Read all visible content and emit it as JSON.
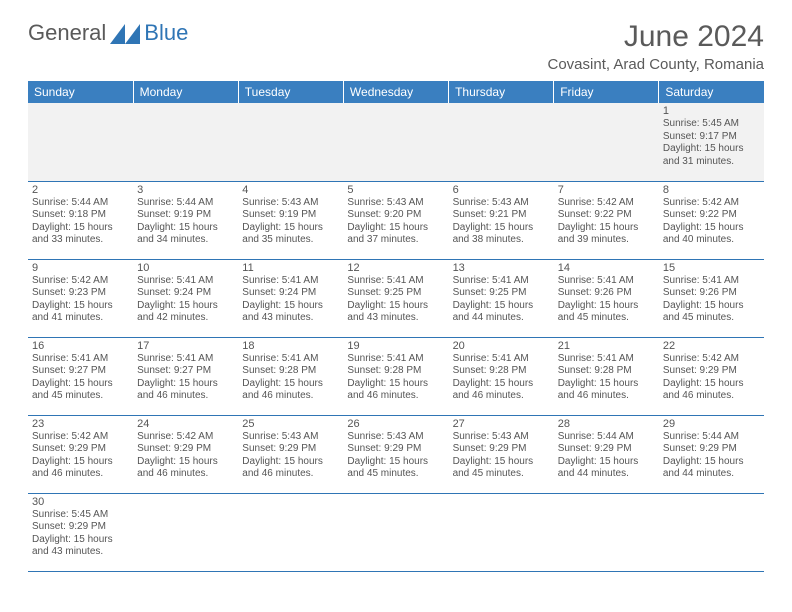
{
  "logo": {
    "part1": "General",
    "part2": "Blue"
  },
  "title": "June 2024",
  "location": "Covasint, Arad County, Romania",
  "colors": {
    "header_bg": "#3a7fc0",
    "header_text": "#ffffff",
    "border": "#2f75b5",
    "text": "#555555",
    "title_text": "#5a5a5a",
    "row1_bg": "#f2f2f2",
    "logo_accent": "#2f75b5"
  },
  "daynames": [
    "Sunday",
    "Monday",
    "Tuesday",
    "Wednesday",
    "Thursday",
    "Friday",
    "Saturday"
  ],
  "weeks": [
    [
      null,
      null,
      null,
      null,
      null,
      null,
      {
        "n": "1",
        "sr": "Sunrise: 5:45 AM",
        "ss": "Sunset: 9:17 PM",
        "d1": "Daylight: 15 hours",
        "d2": "and 31 minutes."
      }
    ],
    [
      {
        "n": "2",
        "sr": "Sunrise: 5:44 AM",
        "ss": "Sunset: 9:18 PM",
        "d1": "Daylight: 15 hours",
        "d2": "and 33 minutes."
      },
      {
        "n": "3",
        "sr": "Sunrise: 5:44 AM",
        "ss": "Sunset: 9:19 PM",
        "d1": "Daylight: 15 hours",
        "d2": "and 34 minutes."
      },
      {
        "n": "4",
        "sr": "Sunrise: 5:43 AM",
        "ss": "Sunset: 9:19 PM",
        "d1": "Daylight: 15 hours",
        "d2": "and 35 minutes."
      },
      {
        "n": "5",
        "sr": "Sunrise: 5:43 AM",
        "ss": "Sunset: 9:20 PM",
        "d1": "Daylight: 15 hours",
        "d2": "and 37 minutes."
      },
      {
        "n": "6",
        "sr": "Sunrise: 5:43 AM",
        "ss": "Sunset: 9:21 PM",
        "d1": "Daylight: 15 hours",
        "d2": "and 38 minutes."
      },
      {
        "n": "7",
        "sr": "Sunrise: 5:42 AM",
        "ss": "Sunset: 9:22 PM",
        "d1": "Daylight: 15 hours",
        "d2": "and 39 minutes."
      },
      {
        "n": "8",
        "sr": "Sunrise: 5:42 AM",
        "ss": "Sunset: 9:22 PM",
        "d1": "Daylight: 15 hours",
        "d2": "and 40 minutes."
      }
    ],
    [
      {
        "n": "9",
        "sr": "Sunrise: 5:42 AM",
        "ss": "Sunset: 9:23 PM",
        "d1": "Daylight: 15 hours",
        "d2": "and 41 minutes."
      },
      {
        "n": "10",
        "sr": "Sunrise: 5:41 AM",
        "ss": "Sunset: 9:24 PM",
        "d1": "Daylight: 15 hours",
        "d2": "and 42 minutes."
      },
      {
        "n": "11",
        "sr": "Sunrise: 5:41 AM",
        "ss": "Sunset: 9:24 PM",
        "d1": "Daylight: 15 hours",
        "d2": "and 43 minutes."
      },
      {
        "n": "12",
        "sr": "Sunrise: 5:41 AM",
        "ss": "Sunset: 9:25 PM",
        "d1": "Daylight: 15 hours",
        "d2": "and 43 minutes."
      },
      {
        "n": "13",
        "sr": "Sunrise: 5:41 AM",
        "ss": "Sunset: 9:25 PM",
        "d1": "Daylight: 15 hours",
        "d2": "and 44 minutes."
      },
      {
        "n": "14",
        "sr": "Sunrise: 5:41 AM",
        "ss": "Sunset: 9:26 PM",
        "d1": "Daylight: 15 hours",
        "d2": "and 45 minutes."
      },
      {
        "n": "15",
        "sr": "Sunrise: 5:41 AM",
        "ss": "Sunset: 9:26 PM",
        "d1": "Daylight: 15 hours",
        "d2": "and 45 minutes."
      }
    ],
    [
      {
        "n": "16",
        "sr": "Sunrise: 5:41 AM",
        "ss": "Sunset: 9:27 PM",
        "d1": "Daylight: 15 hours",
        "d2": "and 45 minutes."
      },
      {
        "n": "17",
        "sr": "Sunrise: 5:41 AM",
        "ss": "Sunset: 9:27 PM",
        "d1": "Daylight: 15 hours",
        "d2": "and 46 minutes."
      },
      {
        "n": "18",
        "sr": "Sunrise: 5:41 AM",
        "ss": "Sunset: 9:28 PM",
        "d1": "Daylight: 15 hours",
        "d2": "and 46 minutes."
      },
      {
        "n": "19",
        "sr": "Sunrise: 5:41 AM",
        "ss": "Sunset: 9:28 PM",
        "d1": "Daylight: 15 hours",
        "d2": "and 46 minutes."
      },
      {
        "n": "20",
        "sr": "Sunrise: 5:41 AM",
        "ss": "Sunset: 9:28 PM",
        "d1": "Daylight: 15 hours",
        "d2": "and 46 minutes."
      },
      {
        "n": "21",
        "sr": "Sunrise: 5:41 AM",
        "ss": "Sunset: 9:28 PM",
        "d1": "Daylight: 15 hours",
        "d2": "and 46 minutes."
      },
      {
        "n": "22",
        "sr": "Sunrise: 5:42 AM",
        "ss": "Sunset: 9:29 PM",
        "d1": "Daylight: 15 hours",
        "d2": "and 46 minutes."
      }
    ],
    [
      {
        "n": "23",
        "sr": "Sunrise: 5:42 AM",
        "ss": "Sunset: 9:29 PM",
        "d1": "Daylight: 15 hours",
        "d2": "and 46 minutes."
      },
      {
        "n": "24",
        "sr": "Sunrise: 5:42 AM",
        "ss": "Sunset: 9:29 PM",
        "d1": "Daylight: 15 hours",
        "d2": "and 46 minutes."
      },
      {
        "n": "25",
        "sr": "Sunrise: 5:43 AM",
        "ss": "Sunset: 9:29 PM",
        "d1": "Daylight: 15 hours",
        "d2": "and 46 minutes."
      },
      {
        "n": "26",
        "sr": "Sunrise: 5:43 AM",
        "ss": "Sunset: 9:29 PM",
        "d1": "Daylight: 15 hours",
        "d2": "and 45 minutes."
      },
      {
        "n": "27",
        "sr": "Sunrise: 5:43 AM",
        "ss": "Sunset: 9:29 PM",
        "d1": "Daylight: 15 hours",
        "d2": "and 45 minutes."
      },
      {
        "n": "28",
        "sr": "Sunrise: 5:44 AM",
        "ss": "Sunset: 9:29 PM",
        "d1": "Daylight: 15 hours",
        "d2": "and 44 minutes."
      },
      {
        "n": "29",
        "sr": "Sunrise: 5:44 AM",
        "ss": "Sunset: 9:29 PM",
        "d1": "Daylight: 15 hours",
        "d2": "and 44 minutes."
      }
    ],
    [
      {
        "n": "30",
        "sr": "Sunrise: 5:45 AM",
        "ss": "Sunset: 9:29 PM",
        "d1": "Daylight: 15 hours",
        "d2": "and 43 minutes."
      },
      null,
      null,
      null,
      null,
      null,
      null
    ]
  ]
}
